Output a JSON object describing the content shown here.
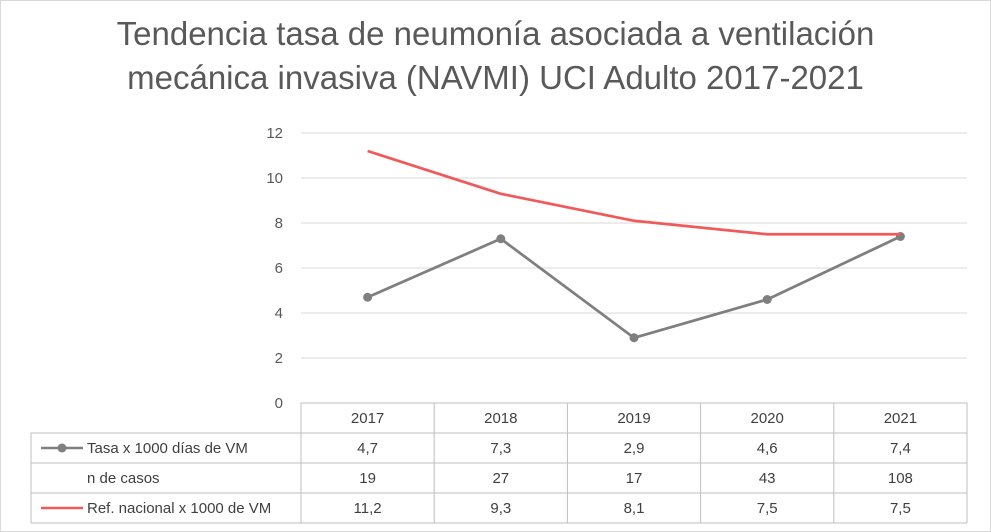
{
  "chart_data": {
    "type": "line",
    "title_line1": "Tendencia tasa de neumonía asociada a ventilación",
    "title_line2": "mecánica invasiva (NAVMI) UCI Adulto 2017-2021",
    "categories": [
      "2017",
      "2018",
      "2019",
      "2020",
      "2021"
    ],
    "ylim": [
      0,
      12
    ],
    "yticks": [
      "0",
      "2",
      "4",
      "6",
      "8",
      "10",
      "12"
    ],
    "grid": true,
    "series": [
      {
        "name": "Tasa x 1000 días de VM",
        "values": [
          4.7,
          7.3,
          2.9,
          4.6,
          7.4
        ],
        "color": "#7f7f7f",
        "marker": "circle"
      },
      {
        "name": "Ref. nacional x 1000 de VM",
        "values": [
          11.2,
          9.3,
          8.1,
          7.5,
          7.5
        ],
        "color": "#f05a5a",
        "marker": "none"
      }
    ],
    "table": {
      "rows": [
        {
          "label": "Tasa x 1000 días de VM",
          "legend": "gray-line-marker",
          "cells": [
            "4,7",
            "7,3",
            "2,9",
            "4,6",
            "7,4"
          ]
        },
        {
          "label": "n de casos",
          "legend": "none",
          "cells": [
            "19",
            "27",
            "17",
            "43",
            "108"
          ]
        },
        {
          "label": "Ref. nacional x 1000 de VM",
          "legend": "red-line",
          "cells": [
            "11,2",
            "9,3",
            "8,1",
            "7,5",
            "7,5"
          ]
        }
      ]
    }
  }
}
